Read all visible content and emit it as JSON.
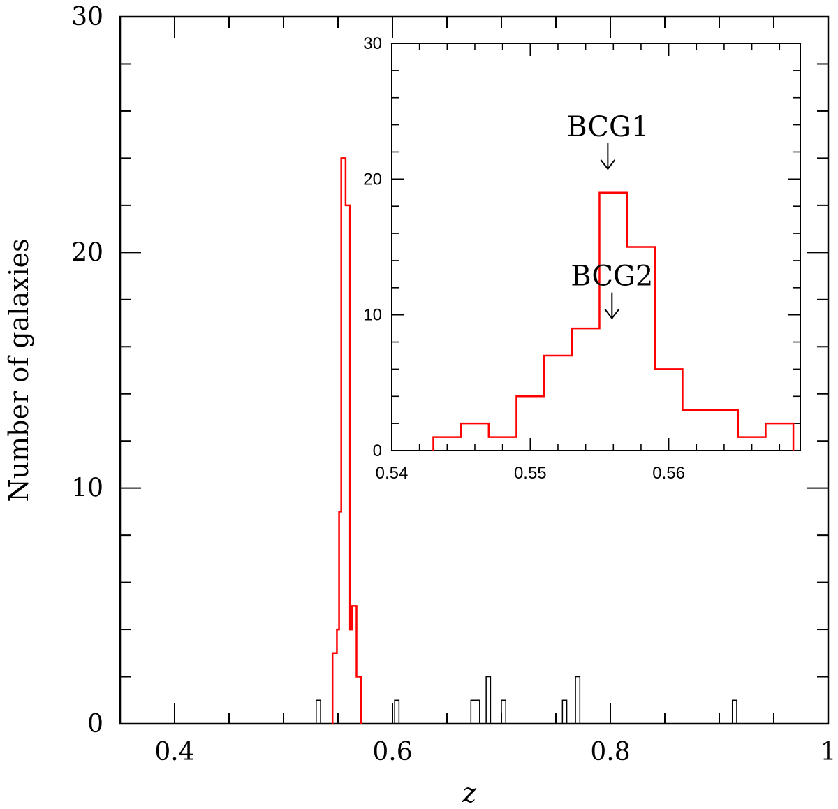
{
  "chart_data": [
    {
      "type": "bar",
      "panel": "main",
      "xlabel": "z",
      "ylabel": "Number of galaxies",
      "xlim": [
        0.35,
        1.0
      ],
      "ylim": [
        0,
        30
      ],
      "x_ticks": [
        0.4,
        0.6,
        0.8,
        1.0
      ],
      "x_tick_labels": [
        "0.4",
        "0.6",
        "0.8",
        "1"
      ],
      "y_ticks": [
        0,
        10,
        20,
        30
      ],
      "y_tick_labels": [
        "0",
        "10",
        "20",
        "30"
      ],
      "bin_width": 0.004,
      "grid": false,
      "series": [
        {
          "name": "",
          "color": "#ff0000",
          "style": "histogram",
          "bins": [
            {
              "x0": 0.545,
              "x1": 0.549,
              "count": 3
            },
            {
              "x0": 0.549,
              "x1": 0.551,
              "count": 4
            },
            {
              "x0": 0.551,
              "x1": 0.553,
              "count": 9
            },
            {
              "x0": 0.553,
              "x1": 0.557,
              "count": 24
            },
            {
              "x0": 0.557,
              "x1": 0.561,
              "count": 22
            },
            {
              "x0": 0.561,
              "x1": 0.563,
              "count": 4
            },
            {
              "x0": 0.563,
              "x1": 0.567,
              "count": 5
            },
            {
              "x0": 0.567,
              "x1": 0.571,
              "count": 2
            }
          ]
        },
        {
          "name": "",
          "color": "#000000",
          "style": "histogram",
          "bins": [
            {
              "x0": 0.53,
              "x1": 0.534,
              "count": 1
            },
            {
              "x0": 0.602,
              "x1": 0.606,
              "count": 1
            },
            {
              "x0": 0.672,
              "x1": 0.68,
              "count": 1
            },
            {
              "x0": 0.686,
              "x1": 0.69,
              "count": 2
            },
            {
              "x0": 0.7,
              "x1": 0.704,
              "count": 1
            },
            {
              "x0": 0.756,
              "x1": 0.76,
              "count": 1
            },
            {
              "x0": 0.768,
              "x1": 0.772,
              "count": 2
            },
            {
              "x0": 0.912,
              "x1": 0.916,
              "count": 1
            }
          ]
        }
      ]
    },
    {
      "type": "bar",
      "panel": "inset",
      "xlim": [
        0.54,
        0.5695
      ],
      "ylim": [
        0,
        30
      ],
      "x_ticks": [
        0.54,
        0.55,
        0.56
      ],
      "x_tick_labels": [
        "0.54",
        "0.55",
        "0.56"
      ],
      "y_ticks": [
        0,
        10,
        20,
        30
      ],
      "y_tick_labels": [
        "0",
        "10",
        "20",
        "30"
      ],
      "bin_width": 0.002,
      "grid": false,
      "series": [
        {
          "name": "",
          "color": "#ff0000",
          "style": "histogram",
          "bins": [
            {
              "x0": 0.543,
              "x1": 0.545,
              "count": 1
            },
            {
              "x0": 0.545,
              "x1": 0.547,
              "count": 2
            },
            {
              "x0": 0.547,
              "x1": 0.549,
              "count": 1
            },
            {
              "x0": 0.549,
              "x1": 0.551,
              "count": 4
            },
            {
              "x0": 0.551,
              "x1": 0.553,
              "count": 7
            },
            {
              "x0": 0.553,
              "x1": 0.555,
              "count": 9
            },
            {
              "x0": 0.555,
              "x1": 0.557,
              "count": 19
            },
            {
              "x0": 0.557,
              "x1": 0.559,
              "count": 15
            },
            {
              "x0": 0.559,
              "x1": 0.561,
              "count": 6
            },
            {
              "x0": 0.561,
              "x1": 0.565,
              "count": 3
            },
            {
              "x0": 0.565,
              "x1": 0.567,
              "count": 1
            },
            {
              "x0": 0.567,
              "x1": 0.569,
              "count": 2
            }
          ]
        }
      ],
      "annotations": [
        {
          "text": "BCG1",
          "x": 0.5556,
          "y": 21
        },
        {
          "text": "BCG2",
          "x": 0.5559,
          "y": 10
        }
      ]
    }
  ]
}
